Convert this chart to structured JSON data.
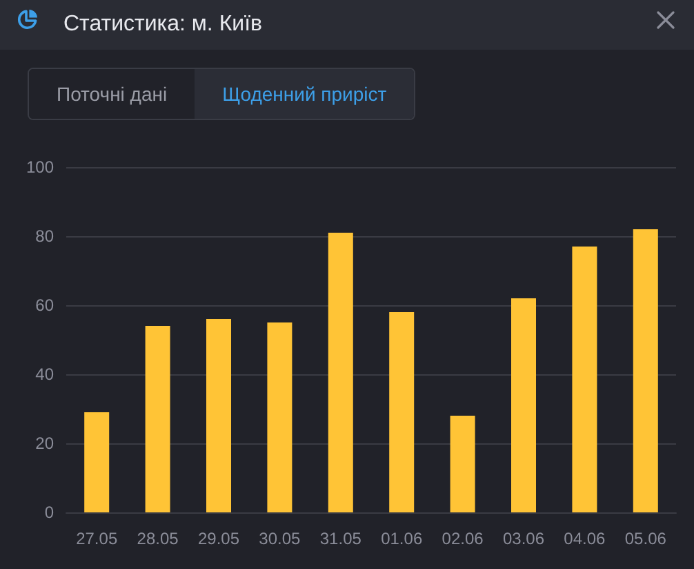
{
  "chart_data": {
    "type": "bar",
    "title": "Статистика: м. Київ",
    "annotations": [
      "Поточні дані",
      "Щоденний приріст"
    ],
    "categories": [
      "27.05",
      "28.05",
      "29.05",
      "30.05",
      "31.05",
      "01.06",
      "02.06",
      "03.06",
      "04.06",
      "05.06"
    ],
    "values": [
      29,
      54,
      56,
      55,
      81,
      58,
      28,
      62,
      77,
      82
    ],
    "color": "#ffc436",
    "ylim": [
      0,
      100
    ],
    "yticks": [
      0,
      20,
      40,
      60,
      80,
      100
    ],
    "grid": "y"
  }
}
